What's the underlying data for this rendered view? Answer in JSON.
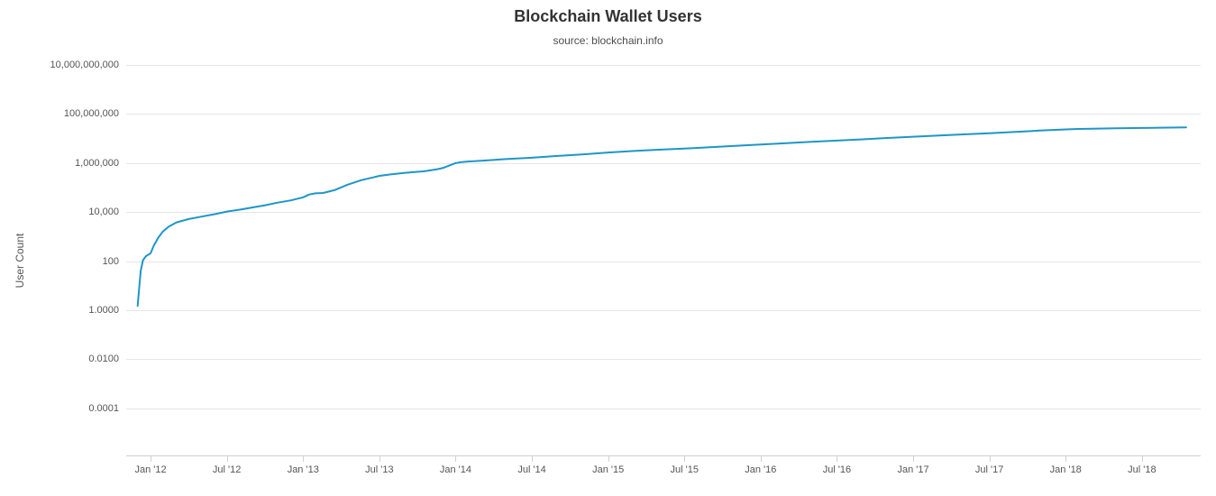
{
  "header": {
    "title": "Blockchain Wallet Users",
    "subtitle": "source: blockchain.info"
  },
  "chart_data": {
    "type": "line",
    "title": "Blockchain Wallet Users",
    "subtitle": "source: blockchain.info",
    "xlabel": "",
    "ylabel": "User Count",
    "legend": "none",
    "grid": "horizontal-only",
    "colors": {
      "line": "#1e96c8",
      "grid": "#e6e6e6",
      "axis": "#d0d0d0",
      "tick_text": "#555555",
      "title_text": "#333333"
    },
    "x_axis": {
      "domain": [
        2011.84,
        2018.885
      ],
      "ticks": [
        {
          "label": "Jan '12",
          "x": 2012.0
        },
        {
          "label": "Jul '12",
          "x": 2012.5
        },
        {
          "label": "Jan '13",
          "x": 2013.0
        },
        {
          "label": "Jul '13",
          "x": 2013.5
        },
        {
          "label": "Jan '14",
          "x": 2014.0
        },
        {
          "label": "Jul '14",
          "x": 2014.5
        },
        {
          "label": "Jan '15",
          "x": 2015.0
        },
        {
          "label": "Jul '15",
          "x": 2015.5
        },
        {
          "label": "Jan '16",
          "x": 2016.0
        },
        {
          "label": "Jul '16",
          "x": 2016.5
        },
        {
          "label": "Jan '17",
          "x": 2017.0
        },
        {
          "label": "Jul '17",
          "x": 2017.5
        },
        {
          "label": "Jan '18",
          "x": 2018.0
        },
        {
          "label": "Jul '18",
          "x": 2018.5
        }
      ]
    },
    "y_axis": {
      "scale": "log",
      "top_exponent": 10,
      "bottom_exponent": -5.92,
      "ticks": [
        {
          "label": "10,000,000,000",
          "value": 10000000000.0
        },
        {
          "label": "100,000,000",
          "value": 100000000.0
        },
        {
          "label": "1,000,000",
          "value": 1000000.0
        },
        {
          "label": "10,000",
          "value": 10000.0
        },
        {
          "label": "100",
          "value": 100
        },
        {
          "label": "1.0000",
          "value": 1
        },
        {
          "label": "0.0100",
          "value": 0.01
        },
        {
          "label": "0.0001",
          "value": 0.0001
        }
      ]
    },
    "series": [
      {
        "name": "Wallet Users",
        "color": "#1e96c8",
        "points": [
          [
            2011.915,
            1.5
          ],
          [
            2011.925,
            8
          ],
          [
            2011.935,
            40
          ],
          [
            2011.95,
            110
          ],
          [
            2011.97,
            160
          ],
          [
            2012.0,
            210
          ],
          [
            2012.02,
            420
          ],
          [
            2012.05,
            900
          ],
          [
            2012.08,
            1600
          ],
          [
            2012.12,
            2600
          ],
          [
            2012.17,
            3800
          ],
          [
            2012.25,
            5200
          ],
          [
            2012.33,
            6500
          ],
          [
            2012.42,
            8200
          ],
          [
            2012.5,
            10500
          ],
          [
            2012.58,
            12500
          ],
          [
            2012.67,
            15500
          ],
          [
            2012.75,
            19000
          ],
          [
            2012.83,
            24000
          ],
          [
            2012.92,
            30000
          ],
          [
            2013.0,
            40000
          ],
          [
            2013.04,
            52000
          ],
          [
            2013.08,
            58000
          ],
          [
            2013.13,
            60000
          ],
          [
            2013.21,
            80000
          ],
          [
            2013.29,
            130000
          ],
          [
            2013.38,
            200000
          ],
          [
            2013.46,
            260000
          ],
          [
            2013.5,
            300000
          ],
          [
            2013.58,
            350000
          ],
          [
            2013.67,
            400000
          ],
          [
            2013.75,
            440000
          ],
          [
            2013.79,
            460000
          ],
          [
            2013.83,
            500000
          ],
          [
            2013.88,
            560000
          ],
          [
            2013.92,
            640000
          ],
          [
            2013.96,
            800000
          ],
          [
            2014.0,
            1000000
          ],
          [
            2014.04,
            1100000
          ],
          [
            2014.08,
            1150000
          ],
          [
            2014.17,
            1250000
          ],
          [
            2014.33,
            1450000
          ],
          [
            2014.5,
            1650000
          ],
          [
            2014.67,
            1950000
          ],
          [
            2014.83,
            2250000
          ],
          [
            2015.0,
            2700000
          ],
          [
            2015.17,
            3100000
          ],
          [
            2015.33,
            3500000
          ],
          [
            2015.5,
            3900000
          ],
          [
            2015.67,
            4400000
          ],
          [
            2015.83,
            5000000
          ],
          [
            2016.0,
            5700000
          ],
          [
            2016.17,
            6500000
          ],
          [
            2016.33,
            7300000
          ],
          [
            2016.5,
            8200000
          ],
          [
            2016.67,
            9300000
          ],
          [
            2016.83,
            10500000
          ],
          [
            2017.0,
            11800000
          ],
          [
            2017.17,
            13200000
          ],
          [
            2017.33,
            14800000
          ],
          [
            2017.5,
            16500000
          ],
          [
            2017.67,
            18500000
          ],
          [
            2017.83,
            21000000
          ],
          [
            2018.0,
            23500000
          ],
          [
            2018.08,
            24500000
          ],
          [
            2018.17,
            25200000
          ],
          [
            2018.33,
            26200000
          ],
          [
            2018.5,
            27000000
          ],
          [
            2018.67,
            27800000
          ],
          [
            2018.79,
            28300000
          ]
        ]
      }
    ]
  }
}
